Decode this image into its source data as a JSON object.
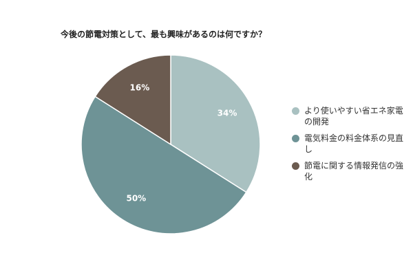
{
  "chart_data": {
    "type": "pie",
    "title": "今後の節電対策として、最も興味があるのは何ですか？",
    "categories": [
      "より使いやすい省エネ家電の開発",
      "電気料金の料金体系の見直し",
      "節電に関する情報発信の強化"
    ],
    "values": [
      34,
      50,
      16
    ],
    "value_labels": [
      "34%",
      "50%",
      "16%"
    ],
    "colors": [
      "#a9c1c1",
      "#6e9396",
      "#6b5b50"
    ],
    "legend": "right"
  }
}
